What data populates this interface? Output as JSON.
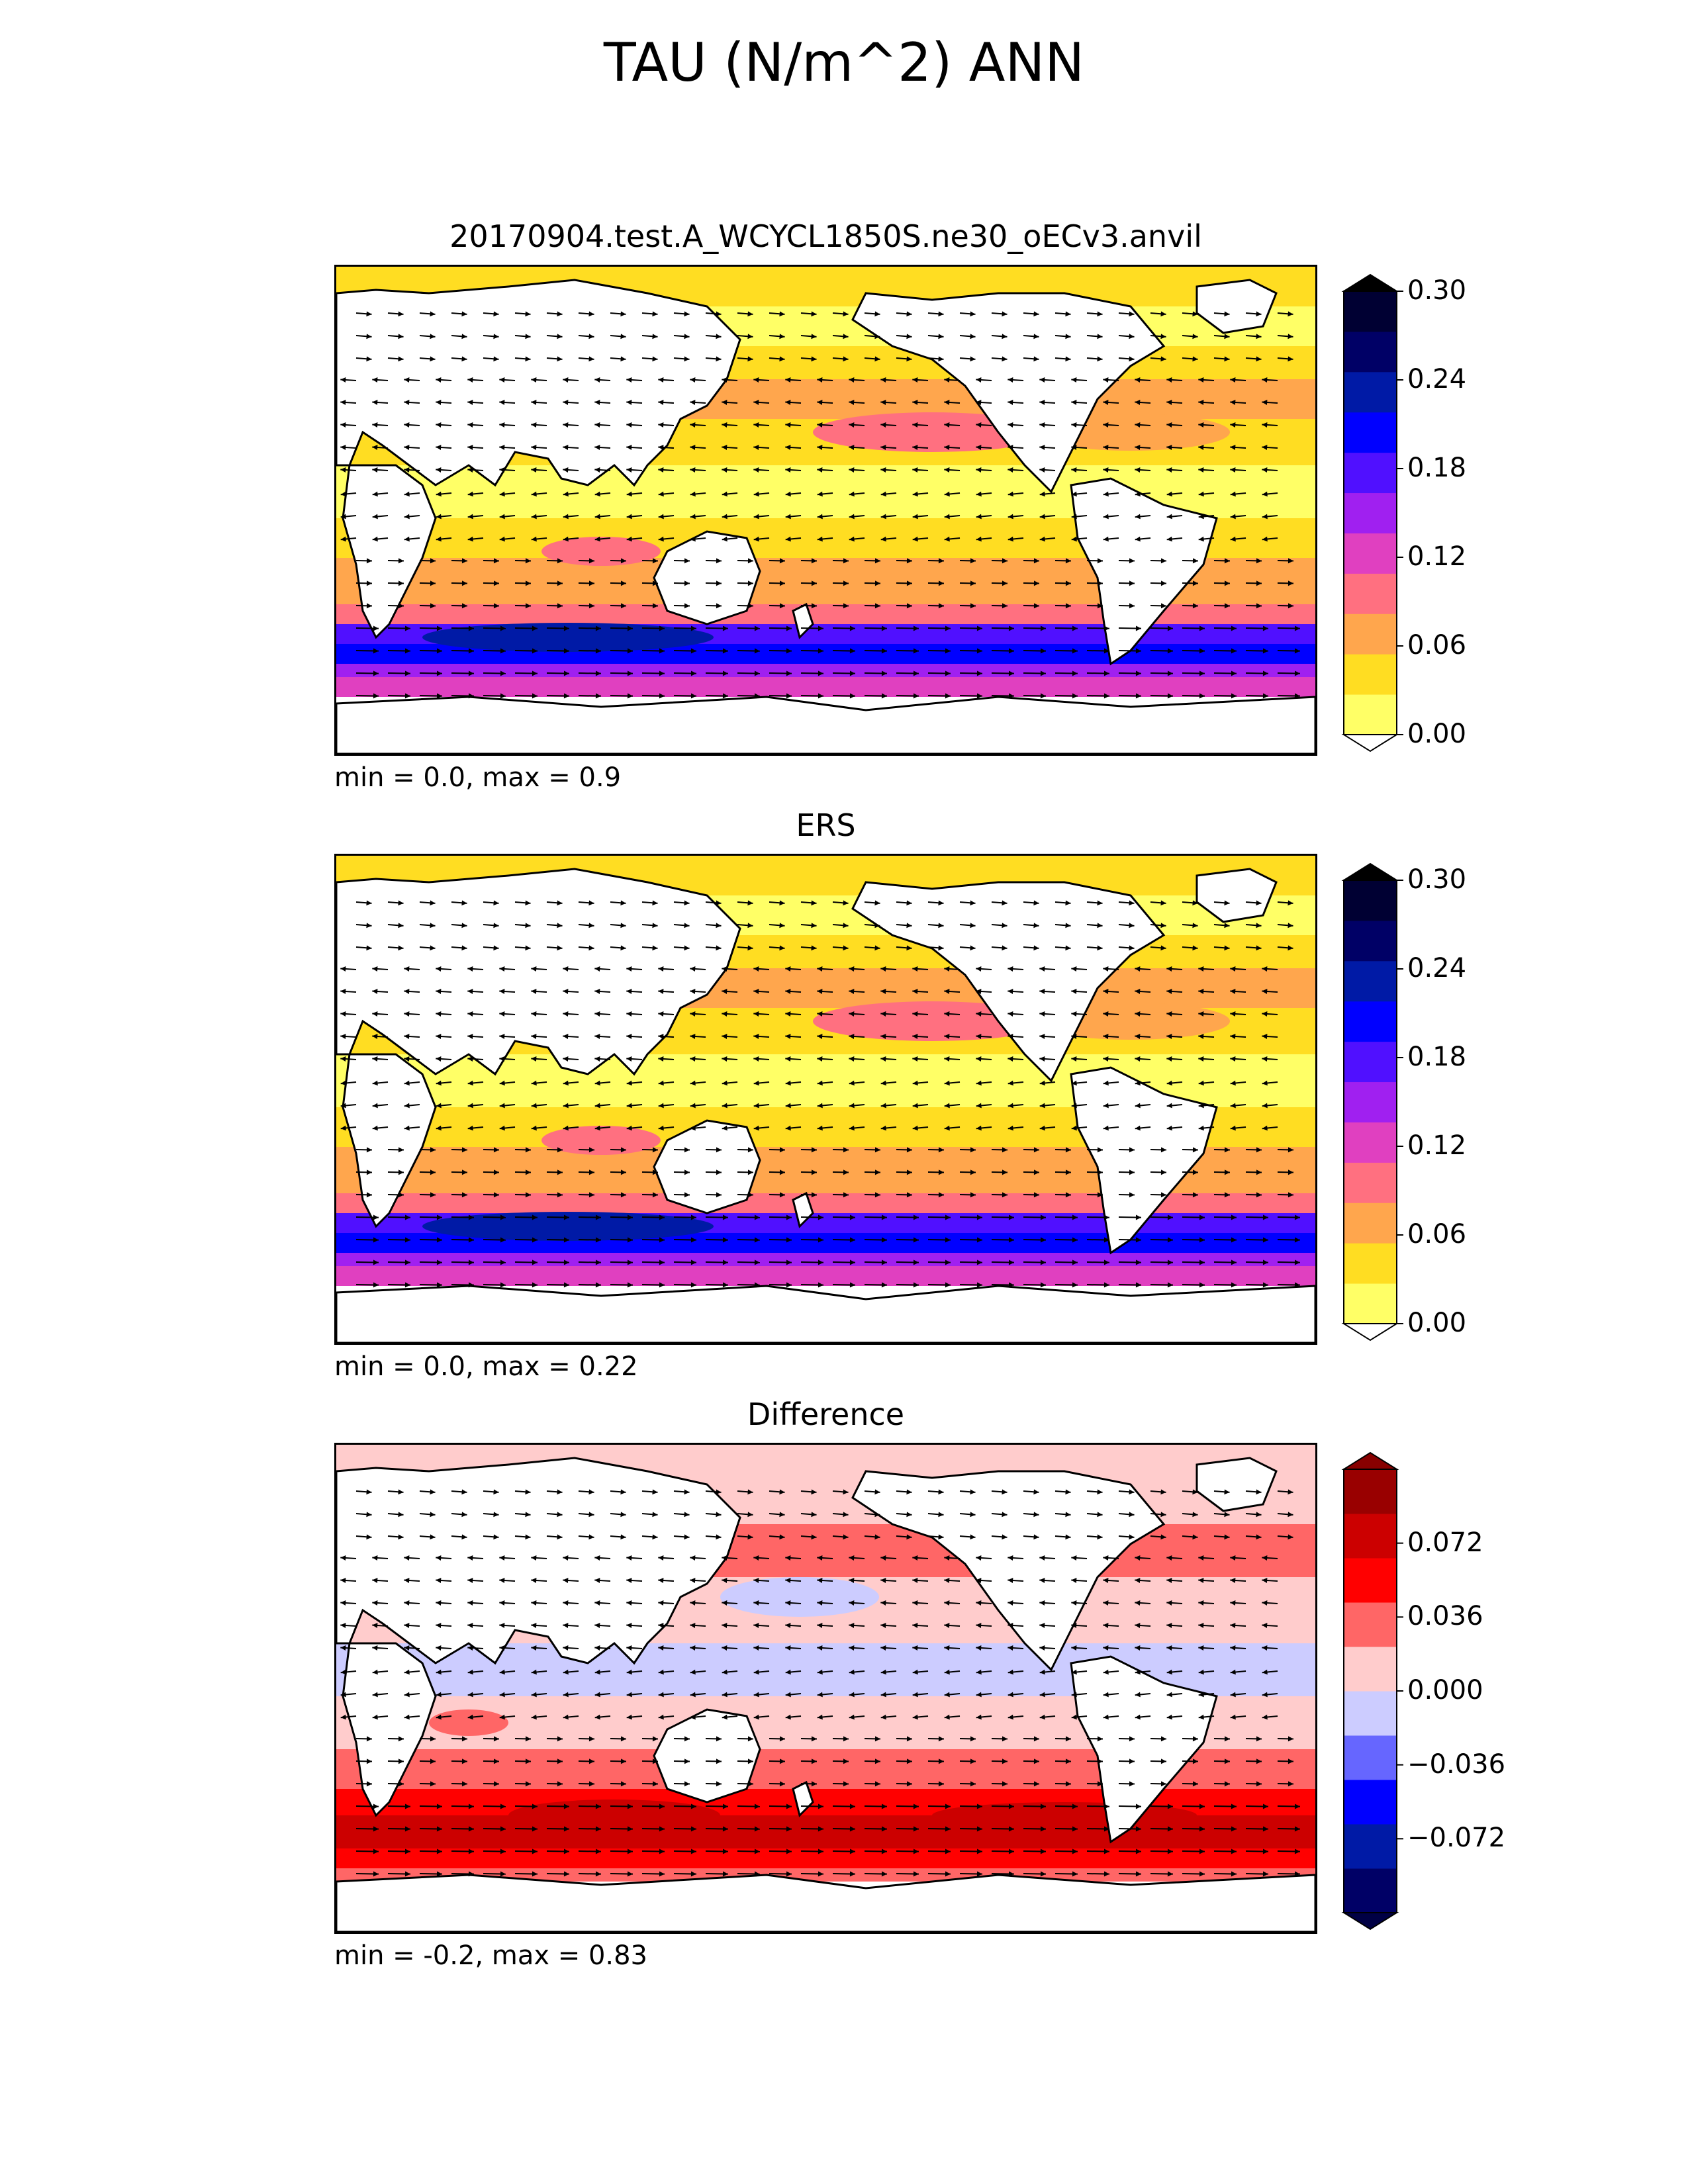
{
  "figure": {
    "title": "TAU (N/m^2) ANN"
  },
  "panels": [
    {
      "title": "20170904.test.A_WCYCL1850S.ne30_oECv3.anvil",
      "stats": "min = 0.0, max = 0.9",
      "field_level": 0.07,
      "colorbar": {
        "ticks": [
          "0.00",
          "0.06",
          "0.12",
          "0.18",
          "0.24",
          "0.30"
        ],
        "colors": [
          "#ffff66",
          "#ffdd22",
          "#ffa64d",
          "#ff7080",
          "#e040c0",
          "#a020f0",
          "#5010ff",
          "#0000ff",
          "#001aa6",
          "#000066",
          "#000033"
        ],
        "extend_low": "#ffffff",
        "extend_high": "#000000"
      }
    },
    {
      "title": "ERS",
      "stats": "min = 0.0, max = 0.22",
      "field_level": 0.06,
      "colorbar": {
        "ticks": [
          "0.00",
          "0.06",
          "0.12",
          "0.18",
          "0.24",
          "0.30"
        ],
        "colors": [
          "#ffff66",
          "#ffdd22",
          "#ffa64d",
          "#ff7080",
          "#e040c0",
          "#a020f0",
          "#5010ff",
          "#0000ff",
          "#001aa6",
          "#000066",
          "#000033"
        ],
        "extend_low": "#ffffff",
        "extend_high": "#000000"
      }
    },
    {
      "title": "Difference",
      "stats": "min = -0.2, max = 0.83",
      "field_level": 0.018,
      "colorbar": {
        "ticks": [
          "−0.072",
          "−0.036",
          "0.000",
          "0.036",
          "0.072"
        ],
        "colors": [
          "#000066",
          "#001aa6",
          "#0000ff",
          "#6666ff",
          "#ccccff",
          "#ffcccc",
          "#ff6666",
          "#ff0000",
          "#cc0000",
          "#990000"
        ],
        "extend_low": "#000044",
        "extend_high": "#880000"
      }
    }
  ]
}
